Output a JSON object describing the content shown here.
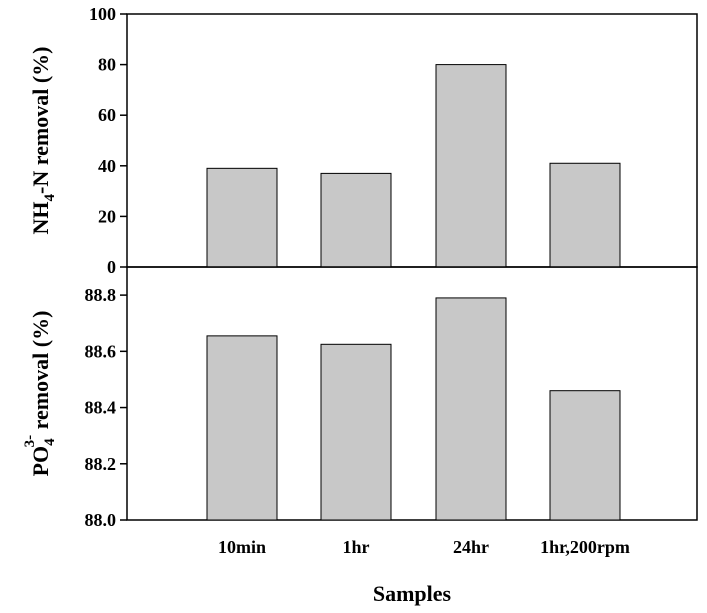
{
  "chart_data": {
    "type": "bar",
    "xlabel": "Samples",
    "categories": [
      "10min",
      "1hr",
      "24hr",
      "1hr,200rpm"
    ],
    "bar_color": "#c8c8c8",
    "edge_color": "#000000",
    "grid": false,
    "panels": [
      {
        "ylabel_parts": {
          "main": "NH",
          "sub": "4",
          "rest": "-N removal (%)"
        },
        "ylim": [
          0,
          100
        ],
        "yticks": [
          "0",
          "20",
          "40",
          "60",
          "80",
          "100"
        ],
        "values": [
          39,
          37,
          80,
          41
        ]
      },
      {
        "ylabel_parts": {
          "main": "PO",
          "sub": "4",
          "sup": "3-",
          "rest": " removal (%)"
        },
        "ylim": [
          88.0,
          88.9
        ],
        "yticks": [
          "88.0",
          "88.2",
          "88.4",
          "88.6",
          "88.8"
        ],
        "values": [
          88.655,
          88.625,
          88.79,
          88.46
        ]
      }
    ]
  }
}
